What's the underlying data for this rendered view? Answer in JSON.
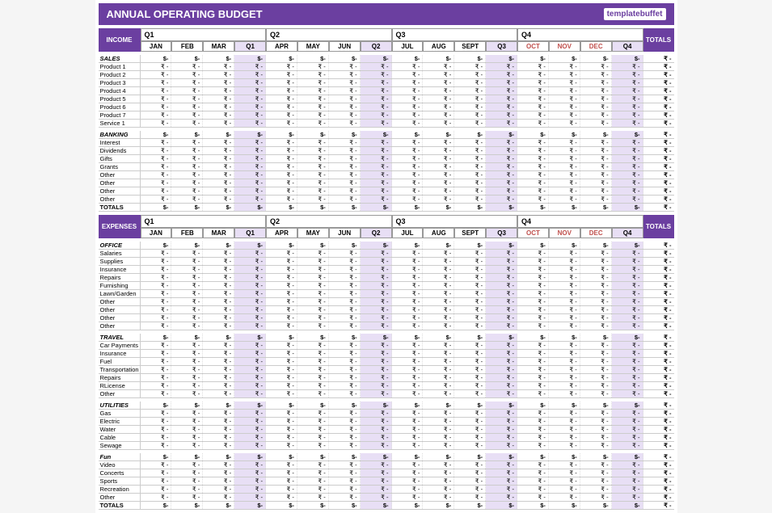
{
  "title": "ANNUAL OPERATING BUDGET",
  "logo": "templatebuffet",
  "quarters": [
    "Q1",
    "Q2",
    "Q3",
    "Q4"
  ],
  "months": [
    "JAN",
    "FEB",
    "MAR",
    "Q1",
    "APR",
    "MAY",
    "JUN",
    "Q2",
    "JUL",
    "AUG",
    "SEPT",
    "Q3",
    "OCT",
    "NOV",
    "DEC",
    "Q4"
  ],
  "qcols": [
    3,
    7,
    11,
    15
  ],
  "totals_label": "TOTALS",
  "cell_dollar": "$-",
  "cell_default": "₹    -",
  "cell_total": "₹    -",
  "sections": [
    {
      "label": "INCOME",
      "groups": [
        {
          "cat": "SALES",
          "rows": [
            "Product 1",
            "Product 2",
            "Product 3",
            "Product 4",
            "Product 5",
            "Product 6",
            "Product 7",
            "Service 1"
          ]
        },
        {
          "cat": "BANKING",
          "rows": [
            "Interest",
            "Dividends",
            "Gifts",
            "Grants",
            "Other",
            "Other",
            "Other",
            "Other"
          ],
          "totals": true
        }
      ]
    },
    {
      "label": "EXPENSES",
      "groups": [
        {
          "cat": "OFFICE",
          "rows": [
            "Salaries",
            "Supplies",
            "Insurance",
            "Repairs",
            "Furnishing",
            "Lawn/Garden",
            "Other",
            "Other",
            "Other",
            "Other"
          ]
        },
        {
          "cat": "TRAVEL",
          "rows": [
            "Car Payments",
            "Insurance",
            "Fuel",
            "Transportation",
            "Repairs",
            "RLicense",
            "Other"
          ]
        },
        {
          "cat": "UTILITIES",
          "rows": [
            "Gas",
            "Electric",
            "Water",
            "Cable",
            "Sewage"
          ]
        },
        {
          "cat": "Fun",
          "rows": [
            "Video",
            "Concerts",
            "Sports",
            "Recreation",
            "Other"
          ],
          "totals": true
        }
      ]
    }
  ],
  "colors": {
    "purple": "#6b3fa0",
    "lightpurple": "#e8dff5",
    "red": "#c0504d"
  }
}
